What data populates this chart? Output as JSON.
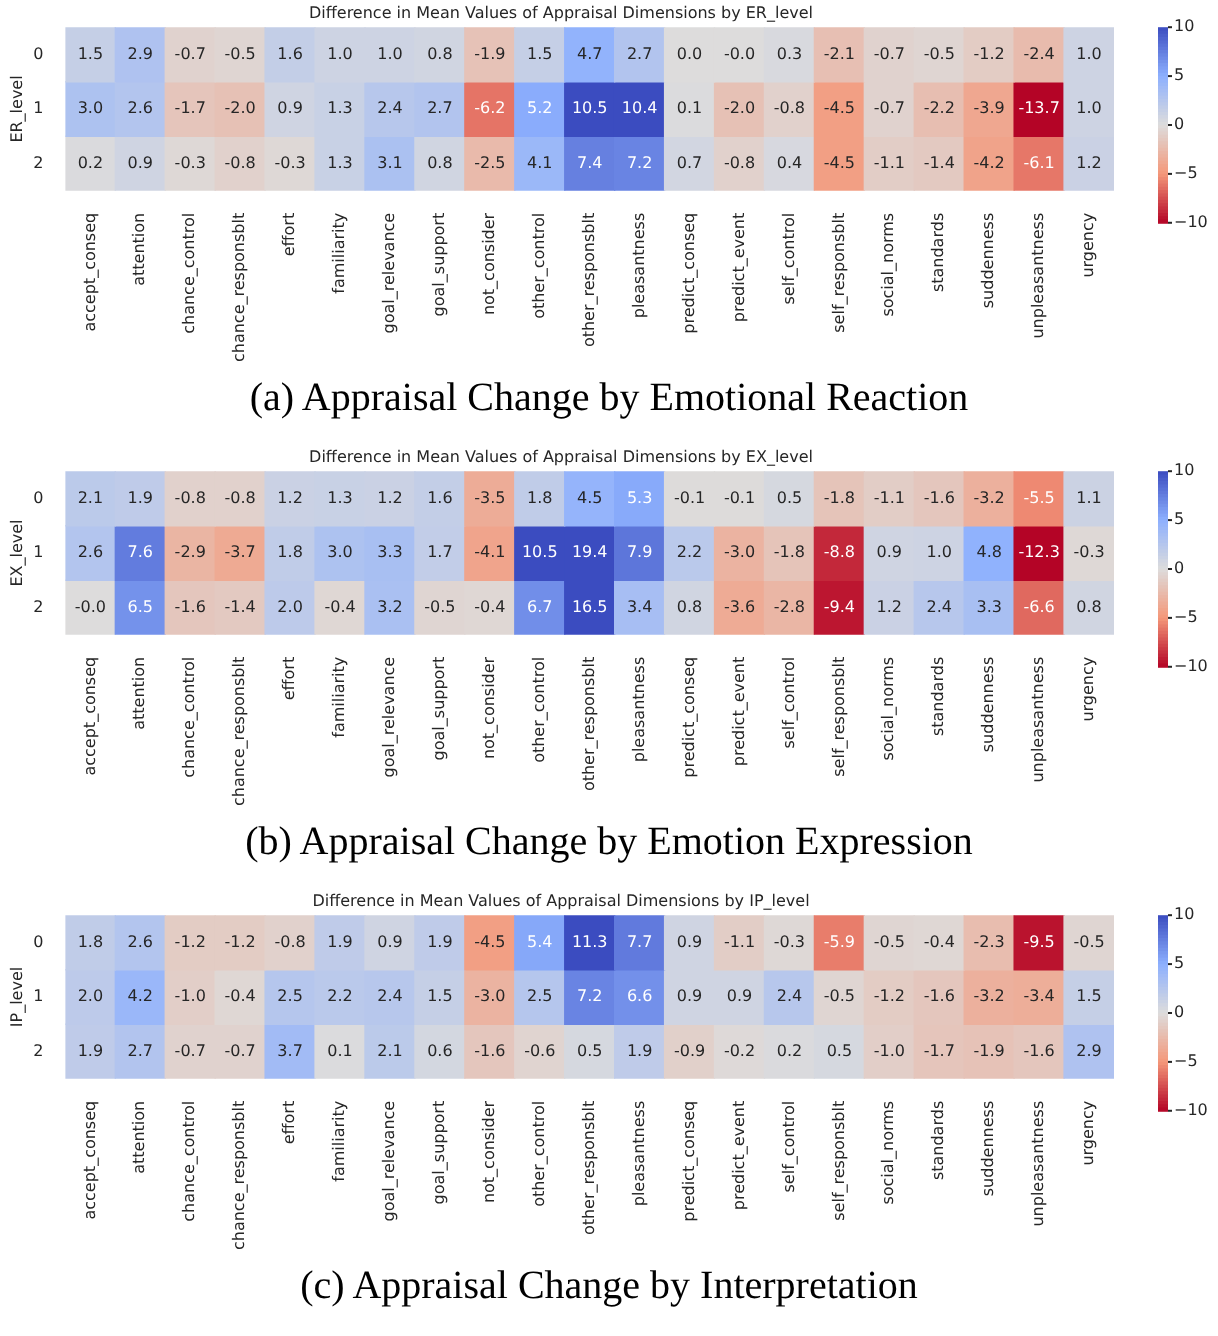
{
  "chart_data": [
    {
      "type": "heatmap",
      "title": "Difference in Mean Values of Appraisal Dimensions by ER_level",
      "ylabel": "ER_level",
      "data_labels": true,
      "categories": [
        "accept_conseq",
        "attention",
        "chance_control",
        "chance_responsblt",
        "effort",
        "familiarity",
        "goal_relevance",
        "goal_support",
        "not_consider",
        "other_control",
        "other_responsblt",
        "pleasantness",
        "predict_conseq",
        "predict_event",
        "self_control",
        "self_responsblt",
        "social_norms",
        "standards",
        "suddenness",
        "unpleasantness",
        "urgency"
      ],
      "y_categories": [
        "0",
        "1",
        "2"
      ],
      "cells": [
        [
          1.5,
          2.9,
          -0.7,
          -0.5,
          1.6,
          1.0,
          1.0,
          0.8,
          -1.9,
          1.5,
          4.7,
          2.7,
          0.0,
          -0.0,
          0.3,
          -2.1,
          -0.7,
          -0.5,
          -1.2,
          -2.4,
          1.0
        ],
        [
          3.0,
          2.6,
          -1.7,
          -2.0,
          0.9,
          1.3,
          2.4,
          2.7,
          -6.2,
          5.2,
          10.5,
          10.4,
          0.1,
          -2.0,
          -0.8,
          -4.5,
          -0.7,
          -2.2,
          -3.9,
          -13.7,
          1.0
        ],
        [
          0.2,
          0.9,
          -0.3,
          -0.8,
          -0.3,
          1.3,
          3.1,
          0.8,
          -2.5,
          4.1,
          7.4,
          7.2,
          0.7,
          -0.8,
          0.4,
          -4.5,
          -1.1,
          -1.4,
          -4.2,
          -6.1,
          1.2
        ]
      ],
      "cell_labels": [
        [
          "1.5",
          "2.9",
          "-0.7",
          "-0.5",
          "1.6",
          "1.0",
          "1.0",
          "0.8",
          "-1.9",
          "1.5",
          "4.7",
          "2.7",
          "0.0",
          "-0.0",
          "0.3",
          "-2.1",
          "-0.7",
          "-0.5",
          "-1.2",
          "-2.4",
          "1.0"
        ],
        [
          "3.0",
          "2.6",
          "-1.7",
          "-2.0",
          "0.9",
          "1.3",
          "2.4",
          "2.7",
          "-6.2",
          "5.2",
          "10.5",
          "10.4",
          "0.1",
          "-2.0",
          "-0.8",
          "-4.5",
          "-0.7",
          "-2.2",
          "-3.9",
          "-13.7",
          "1.0"
        ],
        [
          "0.2",
          "0.9",
          "-0.3",
          "-0.8",
          "-0.3",
          "1.3",
          "3.1",
          "0.8",
          "-2.5",
          "4.1",
          "7.4",
          "7.2",
          "0.7",
          "-0.8",
          "0.4",
          "-4.5",
          "-1.1",
          "-1.4",
          "-4.2",
          "-6.1",
          "1.2"
        ]
      ],
      "clim": [
        -10,
        10
      ],
      "cticks": [
        -10,
        -5,
        0,
        5,
        10
      ],
      "annotations": [
        "(a) Appraisal Change by Emotional Reaction"
      ]
    },
    {
      "type": "heatmap",
      "title": "Difference in Mean Values of Appraisal Dimensions by EX_level",
      "ylabel": "EX_level",
      "data_labels": true,
      "categories": [
        "accept_conseq",
        "attention",
        "chance_control",
        "chance_responsblt",
        "effort",
        "familiarity",
        "goal_relevance",
        "goal_support",
        "not_consider",
        "other_control",
        "other_responsblt",
        "pleasantness",
        "predict_conseq",
        "predict_event",
        "self_control",
        "self_responsblt",
        "social_norms",
        "standards",
        "suddenness",
        "unpleasantness",
        "urgency"
      ],
      "y_categories": [
        "0",
        "1",
        "2"
      ],
      "cells": [
        [
          2.1,
          1.9,
          -0.8,
          -0.8,
          1.2,
          1.3,
          1.2,
          1.6,
          -3.5,
          1.8,
          4.5,
          5.3,
          -0.1,
          -0.1,
          0.5,
          -1.8,
          -1.1,
          -1.6,
          -3.2,
          -5.5,
          1.1
        ],
        [
          2.6,
          7.6,
          -2.9,
          -3.7,
          1.8,
          3.0,
          3.3,
          1.7,
          -4.1,
          10.5,
          19.4,
          7.9,
          2.2,
          -3.0,
          -1.8,
          -8.8,
          0.9,
          1.0,
          4.8,
          -12.3,
          -0.3
        ],
        [
          -0.0,
          6.5,
          -1.6,
          -1.4,
          2.0,
          -0.4,
          3.2,
          -0.5,
          -0.4,
          6.7,
          16.5,
          3.4,
          0.8,
          -3.6,
          -2.8,
          -9.4,
          1.2,
          2.4,
          3.3,
          -6.6,
          0.8
        ]
      ],
      "cell_labels": [
        [
          "2.1",
          "1.9",
          "-0.8",
          "-0.8",
          "1.2",
          "1.3",
          "1.2",
          "1.6",
          "-3.5",
          "1.8",
          "4.5",
          "5.3",
          "-0.1",
          "-0.1",
          "0.5",
          "-1.8",
          "-1.1",
          "-1.6",
          "-3.2",
          "-5.5",
          "1.1"
        ],
        [
          "2.6",
          "7.6",
          "-2.9",
          "-3.7",
          "1.8",
          "3.0",
          "3.3",
          "1.7",
          "-4.1",
          "10.5",
          "19.4",
          "7.9",
          "2.2",
          "-3.0",
          "-1.8",
          "-8.8",
          "0.9",
          "1.0",
          "4.8",
          "-12.3",
          "-0.3"
        ],
        [
          "-0.0",
          "6.5",
          "-1.6",
          "-1.4",
          "2.0",
          "-0.4",
          "3.2",
          "-0.5",
          "-0.4",
          "6.7",
          "16.5",
          "3.4",
          "0.8",
          "-3.6",
          "-2.8",
          "-9.4",
          "1.2",
          "2.4",
          "3.3",
          "-6.6",
          "0.8"
        ]
      ],
      "clim": [
        -10,
        10
      ],
      "cticks": [
        -10,
        -5,
        0,
        5,
        10
      ],
      "annotations": [
        "(b) Appraisal Change by Emotion Expression"
      ]
    },
    {
      "type": "heatmap",
      "title": "Difference in Mean Values of Appraisal Dimensions by IP_level",
      "ylabel": "IP_level",
      "data_labels": true,
      "categories": [
        "accept_conseq",
        "attention",
        "chance_control",
        "chance_responsblt",
        "effort",
        "familiarity",
        "goal_relevance",
        "goal_support",
        "not_consider",
        "other_control",
        "other_responsblt",
        "pleasantness",
        "predict_conseq",
        "predict_event",
        "self_control",
        "self_responsblt",
        "social_norms",
        "standards",
        "suddenness",
        "unpleasantness",
        "urgency"
      ],
      "y_categories": [
        "0",
        "1",
        "2"
      ],
      "cells": [
        [
          1.8,
          2.6,
          -1.2,
          -1.2,
          -0.8,
          1.9,
          0.9,
          1.9,
          -4.5,
          5.4,
          11.3,
          7.7,
          0.9,
          -1.1,
          -0.3,
          -5.9,
          -0.5,
          -0.4,
          -2.3,
          -9.5,
          -0.5
        ],
        [
          2.0,
          4.2,
          -1.0,
          -0.4,
          2.5,
          2.2,
          2.4,
          1.5,
          -3.0,
          2.5,
          7.2,
          6.6,
          0.9,
          0.9,
          2.4,
          -0.5,
          -1.2,
          -1.6,
          -3.2,
          -3.4,
          1.5
        ],
        [
          1.9,
          2.7,
          -0.7,
          -0.7,
          3.7,
          0.1,
          2.1,
          0.6,
          -1.6,
          -0.6,
          0.5,
          1.9,
          -0.9,
          -0.2,
          0.2,
          0.5,
          -1.0,
          -1.7,
          -1.9,
          -1.6,
          2.9
        ]
      ],
      "cell_labels": [
        [
          "1.8",
          "2.6",
          "-1.2",
          "-1.2",
          "-0.8",
          "1.9",
          "0.9",
          "1.9",
          "-4.5",
          "5.4",
          "11.3",
          "7.7",
          "0.9",
          "-1.1",
          "-0.3",
          "-5.9",
          "-0.5",
          "-0.4",
          "-2.3",
          "-9.5",
          "-0.5"
        ],
        [
          "2.0",
          "4.2",
          "-1.0",
          "-0.4",
          "2.5",
          "2.2",
          "2.4",
          "1.5",
          "-3.0",
          "2.5",
          "7.2",
          "6.6",
          "0.9",
          "0.9",
          "2.4",
          "-0.5",
          "-1.2",
          "-1.6",
          "-3.2",
          "-3.4",
          "1.5"
        ],
        [
          "1.9",
          "2.7",
          "-0.7",
          "-0.7",
          "3.7",
          "0.1",
          "2.1",
          "0.6",
          "-1.6",
          "-0.6",
          "0.5",
          "1.9",
          "-0.9",
          "-0.2",
          "0.2",
          "0.5",
          "-1.0",
          "-1.7",
          "-1.9",
          "-1.6",
          "2.9"
        ]
      ],
      "clim": [
        -10,
        10
      ],
      "cticks": [
        -10,
        -5,
        0,
        5,
        10
      ],
      "annotations": [
        "(c) Appraisal Change by Interpretation"
      ]
    }
  ]
}
